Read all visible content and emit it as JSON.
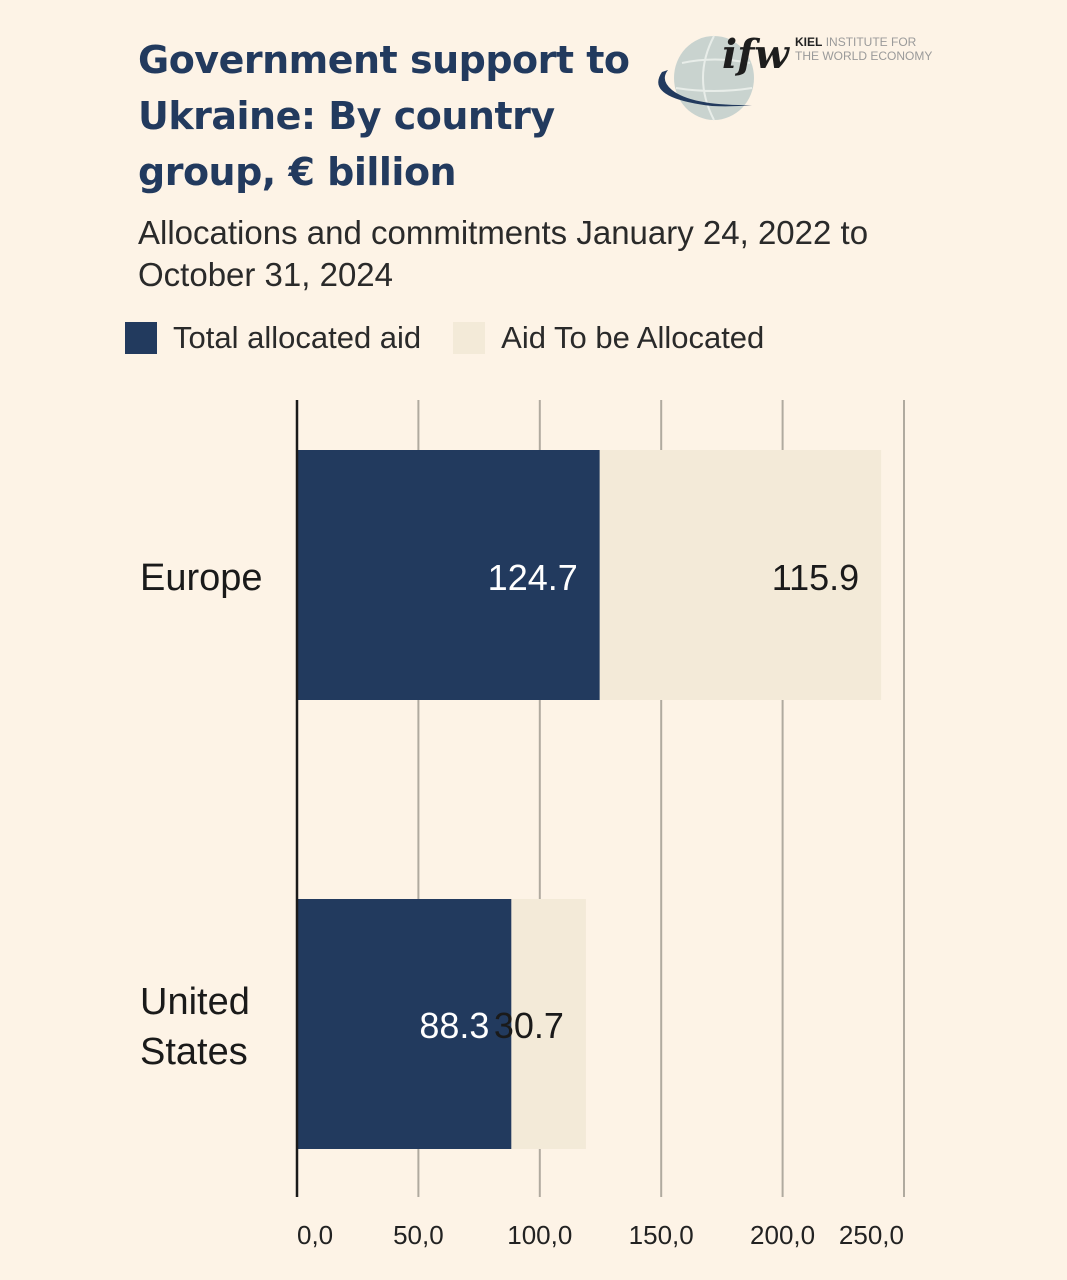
{
  "title": "Government support to Ukraine: By country group, € billion",
  "subtitle": "Allocations and commitments January 24, 2022 to October 31, 2024",
  "logo": {
    "mark": "ifw",
    "name_bold": "KIEL",
    "name_rest_1": "INSTITUTE FOR",
    "name_rest_2": "THE WORLD ECONOMY"
  },
  "colors": {
    "background": "#fdf3e6",
    "allocated": "#223a5e",
    "to_be_allocated": "#f3ead8",
    "grid": "#b0aa9f",
    "title": "#223a5e"
  },
  "legend": [
    {
      "label": "Total allocated aid",
      "color": "#223a5e"
    },
    {
      "label": "Aid To be Allocated",
      "color": "#f3ead8"
    }
  ],
  "chart_data": {
    "type": "bar",
    "orientation": "horizontal",
    "stacked": true,
    "categories": [
      "Europe",
      "United States"
    ],
    "series": [
      {
        "name": "Total allocated aid",
        "values": [
          124.7,
          88.3
        ]
      },
      {
        "name": "Aid To be Allocated",
        "values": [
          115.9,
          30.7
        ]
      }
    ],
    "data_labels": [
      [
        "124.7",
        "88.3"
      ],
      [
        "115.9",
        "30.7"
      ]
    ],
    "xlim": [
      0,
      250
    ],
    "xticks": [
      0,
      50,
      100,
      150,
      200,
      250
    ],
    "xtick_labels": [
      "0,0",
      "50,0",
      "100,0",
      "150,0",
      "200,0",
      "250,0"
    ],
    "grid": true,
    "legend_position": "top-left"
  }
}
